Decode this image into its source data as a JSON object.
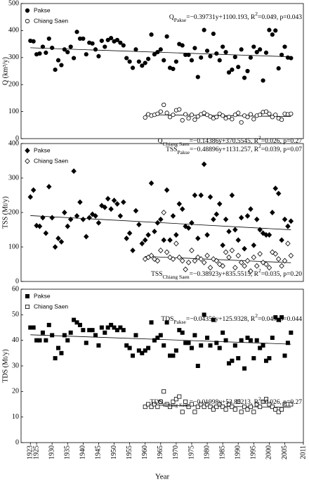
{
  "chart_data": [
    {
      "type": "scatter",
      "ylabel": "Q (km³/y)",
      "xlim": [
        1920,
        2011
      ],
      "ylim": [
        0,
        500
      ],
      "yticks": [
        0,
        100,
        200,
        300,
        400,
        500
      ],
      "series": [
        {
          "name": "Pakse",
          "color": "#000000",
          "marker": "circle",
          "filled": true,
          "x": [
            1923,
            1924,
            1925,
            1926,
            1927,
            1928,
            1929,
            1930,
            1931,
            1932,
            1933,
            1934,
            1935,
            1936,
            1937,
            1938,
            1939,
            1940,
            1941,
            1942,
            1943,
            1944,
            1945,
            1946,
            1947,
            1948,
            1949,
            1950,
            1951,
            1952,
            1953,
            1954,
            1955,
            1956,
            1957,
            1958,
            1959,
            1960,
            1961,
            1962,
            1963,
            1964,
            1965,
            1966,
            1967,
            1968,
            1969,
            1970,
            1971,
            1972,
            1973,
            1974,
            1975,
            1976,
            1977,
            1978,
            1979,
            1980,
            1981,
            1982,
            1983,
            1984,
            1985,
            1986,
            1987,
            1988,
            1989,
            1990,
            1991,
            1992,
            1993,
            1994,
            1995,
            1996,
            1997,
            1998,
            1999,
            2000,
            2001,
            2002,
            2003,
            2004,
            2005,
            2006,
            2007
          ],
          "values": [
            362,
            360,
            312,
            315,
            340,
            318,
            370,
            336,
            255,
            290,
            272,
            330,
            320,
            340,
            298,
            395,
            370,
            370,
            312,
            355,
            352,
            330,
            305,
            362,
            340,
            365,
            372,
            360,
            365,
            355,
            345,
            298,
            285,
            262,
            330,
            285,
            270,
            280,
            295,
            385,
            312,
            320,
            330,
            290,
            378,
            262,
            258,
            285,
            350,
            345,
            310,
            310,
            290,
            335,
            228,
            300,
            402,
            325,
            305,
            388,
            315,
            290,
            340,
            320,
            245,
            255,
            302,
            265,
            330,
            225,
            250,
            300,
            340,
            320,
            330,
            215,
            318,
            402,
            385,
            400,
            260,
            310,
            340,
            300,
            298
          ],
          "trend": {
            "slope": -0.39731,
            "intercept": 1100.193
          },
          "equation": [
            {
              "text": "Q"
            },
            {
              "text": "Pakse",
              "shift": "sub"
            },
            {
              "text": "=−0.39731y+1100.193, R"
            },
            {
              "text": "2",
              "shift": "super"
            },
            {
              "text": "=0.049, p=0.043"
            }
          ]
        },
        {
          "name": "Chiang Saen",
          "color": "#000000",
          "marker": "circle",
          "filled": false,
          "x": [
            1960,
            1961,
            1962,
            1963,
            1964,
            1965,
            1966,
            1967,
            1968,
            1969,
            1970,
            1971,
            1972,
            1973,
            1974,
            1975,
            1976,
            1977,
            1978,
            1979,
            1980,
            1981,
            1982,
            1983,
            1984,
            1985,
            1986,
            1987,
            1988,
            1989,
            1990,
            1991,
            1992,
            1993,
            1994,
            1995,
            1996,
            1997,
            1998,
            1999,
            2000,
            2001,
            2002,
            2003,
            2004,
            2005,
            2006,
            2007
          ],
          "values": [
            78,
            90,
            85,
            88,
            92,
            100,
            125,
            95,
            80,
            88,
            105,
            108,
            68,
            90,
            75,
            88,
            70,
            82,
            90,
            95,
            88,
            82,
            75,
            80,
            92,
            85,
            75,
            80,
            72,
            88,
            95,
            60,
            85,
            80,
            90,
            72,
            85,
            88,
            98,
            100,
            92,
            80,
            88,
            75,
            70,
            92,
            90,
            92
          ],
          "trend": {
            "slope": -0.14386,
            "intercept": 370.5545
          },
          "equation": [
            {
              "text": "Q"
            },
            {
              "text": "Chiang Saen",
              "shift": "sub"
            },
            {
              "text": "=−0.14386y+370.5545, R"
            },
            {
              "text": "2",
              "shift": "super"
            },
            {
              "text": "=0.026, p=0.27"
            }
          ]
        }
      ]
    },
    {
      "type": "scatter",
      "ylabel": "TSS (Mt/y)",
      "xlim": [
        1920,
        2011
      ],
      "ylim": [
        0,
        400
      ],
      "yticks": [
        0,
        100,
        200,
        300,
        400
      ],
      "series": [
        {
          "name": "Pakse",
          "color": "#000000",
          "marker": "diamond",
          "filled": true,
          "x": [
            1923,
            1924,
            1925,
            1926,
            1927,
            1928,
            1929,
            1930,
            1931,
            1932,
            1933,
            1934,
            1935,
            1936,
            1937,
            1938,
            1939,
            1940,
            1941,
            1942,
            1943,
            1944,
            1945,
            1946,
            1947,
            1948,
            1949,
            1950,
            1951,
            1952,
            1953,
            1954,
            1955,
            1956,
            1957,
            1958,
            1959,
            1960,
            1961,
            1962,
            1963,
            1964,
            1965,
            1966,
            1967,
            1968,
            1969,
            1970,
            1971,
            1972,
            1973,
            1974,
            1975,
            1976,
            1977,
            1978,
            1979,
            1980,
            1981,
            1982,
            1983,
            1984,
            1985,
            1986,
            1987,
            1988,
            1989,
            1990,
            1991,
            1992,
            1993,
            1994,
            1995,
            1996,
            1997,
            1998,
            1999,
            2000,
            2001,
            2002,
            2003,
            2004,
            2005,
            2006,
            2007
          ],
          "values": [
            245,
            265,
            162,
            160,
            185,
            140,
            275,
            185,
            100,
            125,
            115,
            200,
            160,
            180,
            320,
            190,
            230,
            180,
            130,
            185,
            195,
            190,
            170,
            220,
            215,
            240,
            210,
            235,
            225,
            190,
            230,
            125,
            140,
            90,
            205,
            165,
            110,
            120,
            135,
            285,
            145,
            170,
            180,
            120,
            265,
            120,
            190,
            135,
            225,
            210,
            160,
            155,
            170,
            250,
            125,
            250,
            340,
            135,
            245,
            180,
            195,
            225,
            105,
            180,
            145,
            250,
            150,
            120,
            185,
            95,
            190,
            210,
            105,
            180,
            150,
            140,
            135,
            135,
            200,
            270,
            255,
            120,
            180,
            160,
            175
          ],
          "trend": {
            "slope": -0.48896,
            "intercept": 1131.257
          },
          "equation": [
            {
              "text": "TSS"
            },
            {
              "text": "Pakse",
              "shift": "sub"
            },
            {
              "text": "=−0.48896y+1131.257, R"
            },
            {
              "text": "2",
              "shift": "super"
            },
            {
              "text": "=0.039, p=0.07"
            }
          ]
        },
        {
          "name": "Chiang Saen",
          "color": "#000000",
          "marker": "diamond",
          "filled": false,
          "x": [
            1960,
            1961,
            1962,
            1963,
            1964,
            1965,
            1966,
            1967,
            1968,
            1969,
            1970,
            1971,
            1972,
            1973,
            1974,
            1975,
            1976,
            1977,
            1978,
            1979,
            1980,
            1981,
            1982,
            1983,
            1984,
            1985,
            1986,
            1987,
            1988,
            1989,
            1990,
            1991,
            1992,
            1993,
            1994,
            1995,
            1996,
            1997,
            1998,
            1999,
            2000,
            2001,
            2002,
            2003,
            2004,
            2005,
            2006,
            2007
          ],
          "values": [
            65,
            70,
            75,
            65,
            60,
            90,
            200,
            85,
            70,
            65,
            110,
            70,
            60,
            35,
            55,
            90,
            60,
            70,
            65,
            55,
            75,
            40,
            65,
            60,
            50,
            45,
            85,
            70,
            90,
            40,
            75,
            55,
            45,
            60,
            30,
            70,
            45,
            80,
            55,
            50,
            40,
            85,
            80,
            65,
            45,
            60,
            110,
            75
          ],
          "trend": {
            "slope": -0.38923,
            "intercept": 835.5515
          },
          "equation": [
            {
              "text": "TSS"
            },
            {
              "text": "Chiang Saen",
              "shift": "sub"
            },
            {
              "text": "=−0.38923y+835.5515, R"
            },
            {
              "text": "2",
              "shift": "super"
            },
            {
              "text": "=0.035, p=0.20"
            }
          ]
        }
      ]
    },
    {
      "type": "scatter",
      "ylabel": "TDS (Mt/y)",
      "xlabel": "Year",
      "xlim": [
        1920,
        2011
      ],
      "xticks": [
        1923,
        1925,
        1930,
        1935,
        1940,
        1945,
        1950,
        1955,
        1960,
        1965,
        1970,
        1975,
        1980,
        1985,
        1990,
        1995,
        2000,
        2005,
        2011
      ],
      "ylim": [
        0,
        60
      ],
      "yticks": [
        0,
        10,
        20,
        30,
        40,
        50,
        60
      ],
      "series": [
        {
          "name": "Pakse",
          "color": "#000000",
          "marker": "square",
          "filled": true,
          "x": [
            1923,
            1924,
            1925,
            1926,
            1927,
            1928,
            1929,
            1930,
            1931,
            1932,
            1933,
            1934,
            1935,
            1936,
            1937,
            1938,
            1939,
            1940,
            1941,
            1942,
            1943,
            1944,
            1945,
            1946,
            1947,
            1948,
            1949,
            1950,
            1951,
            1952,
            1953,
            1954,
            1955,
            1956,
            1957,
            1958,
            1959,
            1960,
            1961,
            1962,
            1963,
            1964,
            1965,
            1966,
            1967,
            1968,
            1969,
            1970,
            1971,
            1972,
            1973,
            1974,
            1975,
            1976,
            1977,
            1978,
            1979,
            1980,
            1981,
            1982,
            1983,
            1984,
            1985,
            1986,
            1987,
            1988,
            1989,
            1990,
            1991,
            1992,
            1993,
            1994,
            1995,
            1996,
            1997,
            1998,
            1999,
            2000,
            2001,
            2002,
            2003,
            2004,
            2005,
            2006,
            2007
          ],
          "values": [
            45,
            45,
            40,
            40,
            43,
            40,
            46,
            42,
            33,
            37,
            35,
            42,
            40,
            43,
            48,
            47,
            46,
            44,
            39,
            44,
            44,
            42,
            38,
            45,
            43,
            45,
            46,
            45,
            44,
            45,
            44,
            38,
            37,
            34,
            42,
            36,
            35,
            36,
            37,
            47,
            40,
            41,
            42,
            38,
            47,
            34,
            34,
            36,
            44,
            43,
            39,
            39,
            37,
            42,
            30,
            38,
            50,
            41,
            38,
            48,
            39,
            37,
            43,
            40,
            31,
            32,
            38,
            33,
            40,
            29,
            41,
            40,
            33,
            40,
            37,
            38,
            32,
            33,
            41,
            49,
            48,
            49,
            34,
            39,
            43
          ],
          "trend": {
            "slope": -0.04356,
            "intercept": 125.9328
          },
          "equation": [
            {
              "text": "TDS"
            },
            {
              "text": "Pakse",
              "shift": "sub"
            },
            {
              "text": "=−0.04356y+125.9328, R"
            },
            {
              "text": "2",
              "shift": "super"
            },
            {
              "text": "=0.049, p=0.044"
            }
          ]
        },
        {
          "name": "Chiang Saen",
          "color": "#000000",
          "marker": "square",
          "filled": false,
          "x": [
            1960,
            1961,
            1962,
            1963,
            1964,
            1965,
            1966,
            1967,
            1968,
            1969,
            1970,
            1971,
            1972,
            1973,
            1974,
            1975,
            1976,
            1977,
            1978,
            1979,
            1980,
            1981,
            1982,
            1983,
            1984,
            1985,
            1986,
            1987,
            1988,
            1989,
            1990,
            1991,
            1992,
            1993,
            1994,
            1995,
            1996,
            1997,
            1998,
            1999,
            2000,
            2001,
            2002,
            2003,
            2004,
            2005,
            2006,
            2007
          ],
          "values": [
            14,
            15,
            14,
            15,
            14,
            16,
            20,
            15,
            14,
            16,
            17,
            18,
            12,
            16,
            14,
            15,
            12,
            14,
            15,
            14,
            15,
            14,
            13,
            14,
            15,
            14,
            13,
            15,
            14,
            13,
            16,
            12,
            14,
            13,
            14,
            12,
            15,
            14,
            16,
            17,
            15,
            14,
            13,
            12,
            13,
            15,
            15,
            15
          ],
          "trend": {
            "slope": -0.01998,
            "intercept": 53.86213
          },
          "equation": [
            {
              "text": "TDS"
            },
            {
              "text": "Chiang Saen",
              "shift": "sub"
            },
            {
              "text": "=−0.01998y+53.86213, R"
            },
            {
              "text": "2",
              "shift": "super"
            },
            {
              "text": "=0.026, p=0.27"
            }
          ]
        }
      ]
    }
  ]
}
